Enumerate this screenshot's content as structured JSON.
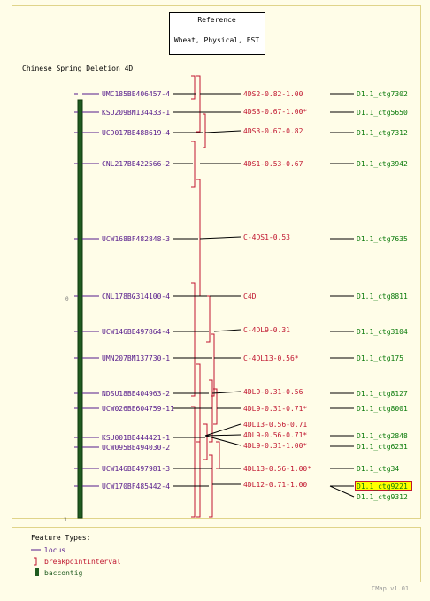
{
  "reference": {
    "title": "Reference",
    "subtitle": "Wheat, Physical, EST"
  },
  "map": {
    "name": "Chinese_Spring_Deletion_4D",
    "axis_labels": [
      "0",
      "1"
    ]
  },
  "rows": [
    {
      "locus": "UMC185BE406457-4",
      "interval": "4DS2-0.82-1.00",
      "contig": "D1.1_ctg7302"
    },
    {
      "locus": "KSU209BM134433-1",
      "interval": "4DS3-0.67-1.00*",
      "contig": "D1.1_ctg5650"
    },
    {
      "locus": "UCD017BE488619-4",
      "interval": "4DS3-0.67-0.82",
      "contig": "D1.1_ctg7312"
    },
    {
      "locus": "CNL217BE422566-2",
      "interval": "4DS1-0.53-0.67",
      "contig": "D1.1_ctg3942"
    },
    {
      "locus": "UCW168BF482848-3",
      "interval": "C-4DS1-0.53",
      "contig": "D1.1_ctg7635"
    },
    {
      "locus": "CNL178BG314100-4",
      "interval": "C4D",
      "contig": "D1.1_ctg8811"
    },
    {
      "locus": "UCW146BE497864-4",
      "interval": "C-4DL9-0.31",
      "contig": "D1.1_ctg3104"
    },
    {
      "locus": "UMN207BM137730-1",
      "interval": "C-4DL13-0.56*",
      "contig": "D1.1_ctg175"
    },
    {
      "locus": "NDSU18BE404963-2",
      "interval": "4DL9-0.31-0.56",
      "contig": "D1.1_ctg8127"
    },
    {
      "locus": "UCW026BE604759-11",
      "interval": "4DL9-0.31-0.71*",
      "contig": "D1.1_ctg8001"
    },
    {
      "locus": "KSU001BE444421-1",
      "interval": "4DL13-0.56-0.71",
      "contig": "D1.1_ctg2848"
    },
    {
      "locus": "UCW095BE494030-2",
      "interval": "4DL9-0.56-0.71*",
      "contig": "D1.1_ctg6231"
    },
    {
      "locus": "UCW146BE497981-3",
      "interval": "4DL9-0.31-1.00*",
      "contig": "D1.1_ctg34"
    },
    {
      "locus": "UCW170BF485442-4",
      "interval": "4DL13-0.56-1.00*",
      "contig": "D1.1_ctg9221"
    },
    {
      "locus": "",
      "interval": "4DL12-0.71-1.00",
      "contig": "D1.1_ctg9312"
    }
  ],
  "legend": {
    "title": "Feature Types:",
    "items": [
      {
        "label": "locus",
        "color": "#551a8b",
        "icon": "line-icon"
      },
      {
        "label": "breakpointinterval",
        "color": "#c0152f",
        "icon": "bracket-icon"
      },
      {
        "label": "baccontig",
        "color": "#1f5b1f",
        "icon": "bar-icon"
      }
    ]
  },
  "footer": {
    "version": "CMap v1.01"
  },
  "colors": {
    "locus": "#551a8b",
    "interval": "#c0152f",
    "contig": "#0a7a0a",
    "bar": "#1f5b1f",
    "highlight": "#ffff00",
    "background": "#fffde8",
    "panel_border": "#e0d48a"
  }
}
